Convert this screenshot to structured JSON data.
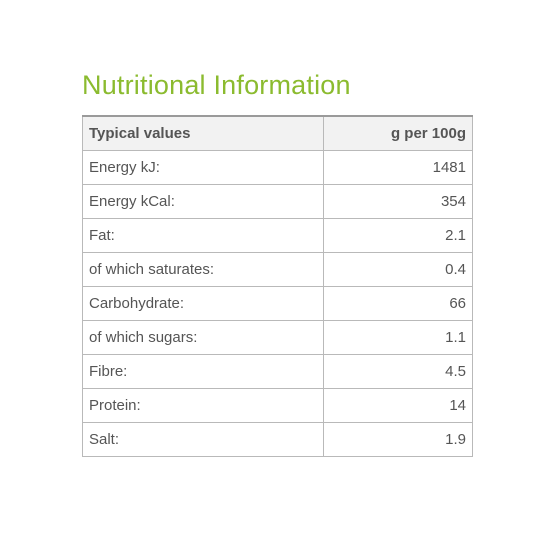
{
  "title": "Nutritional Information",
  "table": {
    "headers": [
      "Typical values",
      "g per 100g"
    ],
    "rows": [
      {
        "label": "Energy kJ:",
        "value": "1481"
      },
      {
        "label": "Energy kCal:",
        "value": "354"
      },
      {
        "label": "Fat:",
        "value": "2.1"
      },
      {
        "label": "of which saturates:",
        "value": "0.4"
      },
      {
        "label": "Carbohydrate:",
        "value": "66"
      },
      {
        "label": "of which sugars:",
        "value": "1.1"
      },
      {
        "label": "Fibre:",
        "value": "4.5"
      },
      {
        "label": "Protein:",
        "value": "14"
      },
      {
        "label": "Salt:",
        "value": "1.9"
      }
    ]
  },
  "colors": {
    "title": "#8bbb2f",
    "text": "#555555",
    "header_bg": "#f2f2f2",
    "border": "#b9b9b9"
  }
}
